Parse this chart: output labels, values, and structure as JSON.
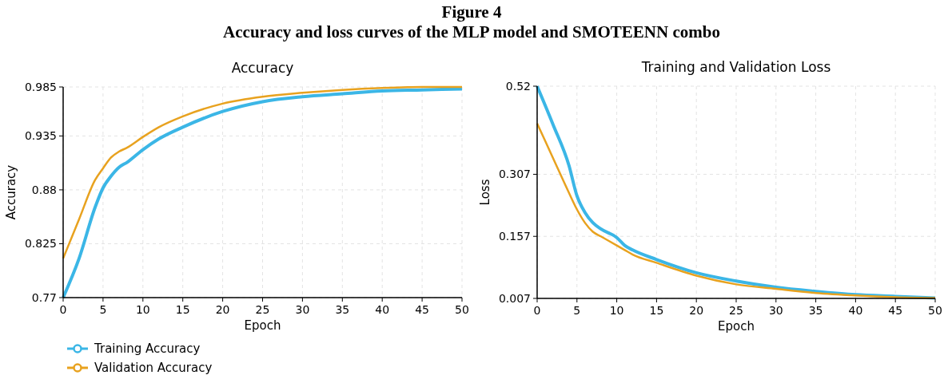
{
  "chart_data": [
    {
      "type": "line",
      "title": "Accuracy",
      "xlabel": "Epoch",
      "ylabel": "Accuracy",
      "annotations": [
        "Figure 4",
        "Accuracy and loss curves of the MLP model and SMOTEENN combo"
      ],
      "xlim": [
        0,
        50
      ],
      "xticks": [
        0,
        5,
        10,
        15,
        20,
        25,
        30,
        35,
        40,
        45,
        50
      ],
      "ylim": [
        0.77,
        0.985
      ],
      "yticks": [
        0.77,
        0.825,
        0.88,
        0.935,
        0.985
      ],
      "grid": true,
      "legend": "bottom",
      "x": [
        0,
        2,
        4,
        5,
        6,
        7,
        8,
        10,
        12,
        15,
        20,
        25,
        30,
        35,
        40,
        45,
        50
      ],
      "series": [
        {
          "name": "Training Accuracy",
          "color": "#3bb6e6",
          "values": [
            0.77,
            0.81,
            0.862,
            0.882,
            0.894,
            0.903,
            0.908,
            0.921,
            0.932,
            0.944,
            0.96,
            0.97,
            0.975,
            0.978,
            0.981,
            0.982,
            0.983
          ]
        },
        {
          "name": "Validation Accuracy",
          "color": "#e8a21f",
          "values": [
            0.81,
            0.85,
            0.89,
            0.902,
            0.913,
            0.919,
            0.923,
            0.934,
            0.944,
            0.955,
            0.968,
            0.975,
            0.979,
            0.982,
            0.984,
            0.985,
            0.985
          ]
        }
      ]
    },
    {
      "type": "line",
      "title": "Training and Validation Loss",
      "xlabel": "Epoch",
      "ylabel": "Loss",
      "xlim": [
        0,
        50
      ],
      "xticks": [
        0,
        5,
        10,
        15,
        20,
        25,
        30,
        35,
        40,
        45,
        50
      ],
      "ylim": [
        0.007,
        0.52
      ],
      "yticks": [
        0.007,
        0.157,
        0.307,
        0.52
      ],
      "grid": true,
      "x": [
        0,
        2,
        4,
        5,
        6,
        7,
        8,
        10,
        11,
        12,
        15,
        20,
        25,
        30,
        35,
        40,
        45,
        50
      ],
      "series": [
        {
          "color": "#3bb6e6",
          "values": [
            0.52,
            0.427,
            0.328,
            0.255,
            0.215,
            0.19,
            0.175,
            0.154,
            0.135,
            0.124,
            0.101,
            0.069,
            0.049,
            0.034,
            0.024,
            0.016,
            0.012,
            0.008
          ]
        },
        {
          "color": "#e8a21f",
          "values": [
            0.43,
            0.346,
            0.262,
            0.222,
            0.19,
            0.168,
            0.157,
            0.135,
            0.124,
            0.113,
            0.093,
            0.062,
            0.041,
            0.03,
            0.02,
            0.014,
            0.01,
            0.008
          ]
        }
      ]
    }
  ]
}
